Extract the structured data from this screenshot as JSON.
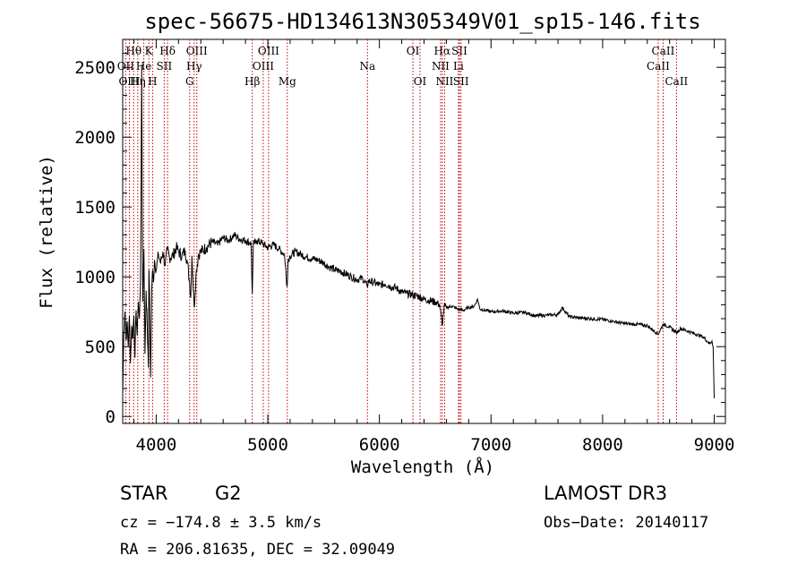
{
  "chart_data": {
    "type": "line",
    "title": "spec-56675-HD134613N305349V01_sp15-146.fits",
    "xlabel": "Wavelength (Å)",
    "ylabel": "Flux (relative)",
    "xlim": [
      3700,
      9100
    ],
    "ylim": [
      -50,
      2700
    ],
    "xticks": [
      4000,
      5000,
      6000,
      7000,
      8000,
      9000
    ],
    "yticks": [
      0,
      500,
      1000,
      1500,
      2000,
      2500
    ],
    "series": [
      {
        "name": "flux",
        "x": [
          3700,
          3710,
          3720,
          3730,
          3740,
          3750,
          3760,
          3770,
          3780,
          3790,
          3800,
          3810,
          3820,
          3830,
          3840,
          3850,
          3860,
          3870,
          3880,
          3890,
          3900,
          3910,
          3920,
          3930,
          3935,
          3940,
          3950,
          3960,
          3968,
          3975,
          3985,
          4000,
          4020,
          4040,
          4060,
          4080,
          4100,
          4120,
          4150,
          4180,
          4200,
          4230,
          4260,
          4280,
          4300,
          4310,
          4320,
          4340,
          4360,
          4380,
          4400,
          4450,
          4500,
          4550,
          4600,
          4650,
          4700,
          4750,
          4800,
          4850,
          4861,
          4870,
          4900,
          4950,
          5000,
          5050,
          5100,
          5150,
          5172,
          5183,
          5200,
          5250,
          5300,
          5350,
          5400,
          5450,
          5500,
          5550,
          5600,
          5650,
          5700,
          5750,
          5800,
          5850,
          5890,
          5900,
          5950,
          6000,
          6050,
          6100,
          6150,
          6200,
          6250,
          6300,
          6350,
          6400,
          6450,
          6500,
          6540,
          6563,
          6580,
          6600,
          6650,
          6700,
          6750,
          6800,
          6850,
          6880,
          6900,
          6950,
          7000,
          7100,
          7200,
          7300,
          7400,
          7500,
          7600,
          7640,
          7700,
          7800,
          7900,
          8000,
          8100,
          8200,
          8300,
          8400,
          8498,
          8542,
          8600,
          8662,
          8700,
          8800,
          8900,
          8960,
          8980,
          8990,
          9000
        ],
        "values": [
          150,
          600,
          750,
          550,
          680,
          500,
          720,
          380,
          650,
          560,
          720,
          420,
          760,
          580,
          820,
          700,
          980,
          2520,
          820,
          1200,
          450,
          900,
          650,
          350,
          1050,
          920,
          280,
          900,
          1050,
          960,
          1120,
          1050,
          1160,
          1100,
          1180,
          1080,
          1200,
          1140,
          1150,
          1210,
          1180,
          1150,
          1190,
          1100,
          950,
          850,
          1150,
          780,
          1050,
          1160,
          1180,
          1210,
          1250,
          1230,
          1280,
          1260,
          1300,
          1270,
          1260,
          1240,
          880,
          1230,
          1260,
          1240,
          1210,
          1230,
          1200,
          1160,
          930,
          1120,
          1150,
          1180,
          1160,
          1140,
          1130,
          1120,
          1100,
          1070,
          1050,
          1040,
          1020,
          1000,
          980,
          990,
          930,
          970,
          960,
          940,
          950,
          930,
          920,
          890,
          880,
          870,
          860,
          840,
          830,
          820,
          800,
          650,
          790,
          780,
          790,
          770,
          760,
          780,
          790,
          840,
          770,
          760,
          750,
          755,
          740,
          745,
          720,
          725,
          730,
          780,
          715,
          705,
          700,
          695,
          680,
          665,
          660,
          650,
          590,
          660,
          640,
          600,
          630,
          600,
          570,
          520,
          540,
          500,
          130
        ]
      }
    ],
    "lines": [
      {
        "label": "Hθ",
        "wave": 3798,
        "row": 1
      },
      {
        "label": "OII",
        "wave": 3727,
        "row": 2
      },
      {
        "label": "OIII",
        "wave": 3760,
        "row": 3
      },
      {
        "label": "Hη",
        "wave": 3835,
        "row": 3
      },
      {
        "label": "He",
        "wave": 3889,
        "row": 2
      },
      {
        "label": "K",
        "wave": 3934,
        "row": 1
      },
      {
        "label": "H",
        "wave": 3968,
        "row": 3
      },
      {
        "label": "SII",
        "wave": 4072,
        "row": 2
      },
      {
        "label": "Hδ",
        "wave": 4102,
        "row": 1
      },
      {
        "label": "OIII",
        "wave": 4364,
        "row": 1
      },
      {
        "label": "Hγ",
        "wave": 4340,
        "row": 2
      },
      {
        "label": "G",
        "wave": 4300,
        "row": 3
      },
      {
        "label": "Hβ",
        "wave": 4861,
        "row": 3
      },
      {
        "label": "OIII",
        "wave": 5007,
        "row": 1
      },
      {
        "label": "OIII",
        "wave": 4959,
        "row": 2
      },
      {
        "label": "Mg",
        "wave": 5175,
        "row": 3
      },
      {
        "label": "Na",
        "wave": 5893,
        "row": 2
      },
      {
        "label": "OI",
        "wave": 6300,
        "row": 1
      },
      {
        "label": "OI",
        "wave": 6364,
        "row": 3
      },
      {
        "label": "Hα",
        "wave": 6563,
        "row": 1
      },
      {
        "label": "SII",
        "wave": 6717,
        "row": 1
      },
      {
        "label": "NII",
        "wave": 6548,
        "row": 2
      },
      {
        "label": "Li",
        "wave": 6708,
        "row": 2
      },
      {
        "label": "NII",
        "wave": 6584,
        "row": 3
      },
      {
        "label": "SII",
        "wave": 6731,
        "row": 3
      },
      {
        "label": "CaII",
        "wave": 8542,
        "row": 1
      },
      {
        "label": "CaII",
        "wave": 8498,
        "row": 2
      },
      {
        "label": "CaII",
        "wave": 8662,
        "row": 3
      }
    ],
    "line_color": "#c00000",
    "curve_color": "#000000"
  },
  "info": {
    "object_class": "STAR",
    "subclass": "G2",
    "survey": "LAMOST DR3",
    "cz": "cz = −174.8 ± 3.5 km/s",
    "obs_date": "Obs−Date: 20140117",
    "coords": "RA = 206.81635, DEC =  32.09049"
  }
}
